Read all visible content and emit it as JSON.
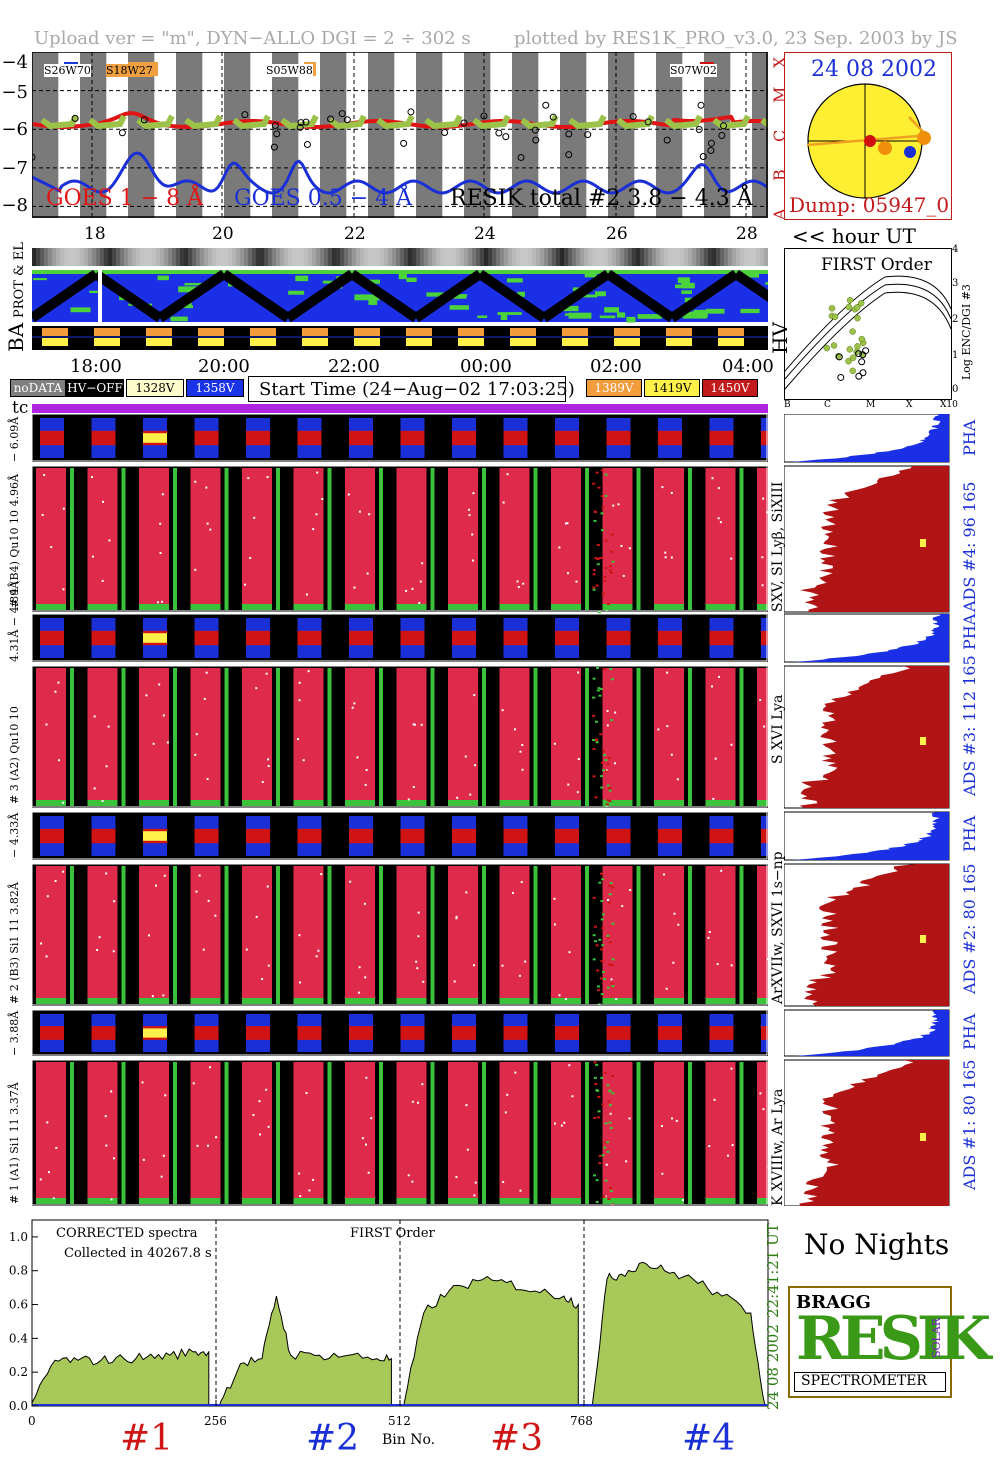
{
  "header": {
    "left": "Upload ver = \"m\", DYN−ALLO DGI =   2 ÷ 302 s",
    "right": "plotted by RES1K_PRO_v3.0, 23 Sep. 2003 by JS"
  },
  "goes": {
    "y_ticks": [
      "−4",
      "−5",
      "−6",
      "−7",
      "−8"
    ],
    "class_letters": [
      "X",
      "M",
      "C",
      "B",
      "A"
    ],
    "legend_goes18": "GOES 1 − 8 Å",
    "legend_goes054": "GOES 0.5 − 4 Å",
    "legend_resik": "RESIK total #2  3.8 − 4.3 Å",
    "flare_tags": [
      {
        "text": "S26W70",
        "color": "#1a3ad6"
      },
      {
        "text": "S18W27",
        "color": "#f0a040"
      },
      {
        "text": "S05W88",
        "color": "#f0a040"
      },
      {
        "text": "S07W02",
        "color": "#d01010"
      }
    ],
    "x_ticks_top": [
      "18",
      "20",
      "22",
      "24",
      "26",
      "28"
    ],
    "hour_label": "<< hour UT"
  },
  "sun": {
    "date": "24 08 2002",
    "dump": "Dump: 05947_0"
  },
  "strips": {
    "prot_label": "PROT & EL",
    "ba_label": "BA",
    "hv_label": "HV"
  },
  "time_axis": {
    "ticks": [
      "18:00",
      "20:00",
      "22:00",
      "00:00",
      "02:00",
      "04:00"
    ]
  },
  "legend_boxes": [
    {
      "text": "noDATA",
      "bg": "#808080",
      "fg": "#ffffff"
    },
    {
      "text": "HV−OFF",
      "bg": "#000000",
      "fg": "#ffffff"
    },
    {
      "text": "1328V",
      "bg": "#fffccc",
      "fg": "#000000"
    },
    {
      "text": "1358V",
      "bg": "#1a33e6",
      "fg": "#ffffff"
    },
    {
      "text": "1389V",
      "bg": "#f39c3c",
      "fg": "#ffffff"
    },
    {
      "text": "1419V",
      "bg": "#fff14a",
      "fg": "#000000"
    },
    {
      "text": "1450V",
      "bg": "#c21a1a",
      "fg": "#ffffff"
    }
  ],
  "start_time": "Start Time (24−Aug−02 17:03:25)",
  "tc_label": "tc",
  "first_order": {
    "title": "FIRST Order",
    "ylabel": "Log ENC/DGI #3",
    "y_ticks": [
      "4",
      "3",
      "2",
      "1",
      "0"
    ],
    "x_ticks": [
      "B",
      "C",
      "M",
      "X",
      "X10"
    ]
  },
  "channels": [
    {
      "pha_label": "− 6.09Å",
      "main_label": "# 4 (B4) Qu10 10 4.96Å",
      "side_label": "SXV, SI Lyβ, SiXIII",
      "ads": "ADS #4:   96 165",
      "pha": "PHA"
    },
    {
      "pha_label": "4.31Å − 4.89Å",
      "main_label": "# 3 (A2) Qu10 10",
      "side_label": "S XVI Lya",
      "ads": "ADS #3:   112 165",
      "pha": "PHA"
    },
    {
      "pha_label": "− 4.33Å",
      "main_label": "# 2 (B3) Si1 11  3.82Å",
      "side_label": "ArXVIIw, SXVI 1s−np",
      "ads": "ADS #2:   80 165",
      "pha": "PHA"
    },
    {
      "pha_label": "− 3.88Å",
      "main_label": "# 1 (A1) Si1 11  3.37Å",
      "side_label": "K XVIIIw, Ar Lya",
      "ads": "ADS #1:   80 165",
      "pha": "PHA"
    }
  ],
  "spectrum": {
    "note1": "CORRECTED spectra",
    "note2": "Collected in 40267.8 s",
    "note3": "FIRST Order",
    "time_side": "22:41:21 UT",
    "date_side": "24 08 2002",
    "y_ticks": [
      "1.0",
      "0.8",
      "0.6",
      "0.4",
      "0.2",
      "0.0"
    ],
    "x_ticks": [
      "0",
      "256",
      "512",
      "768"
    ],
    "xlabel": "Bin No.",
    "bands": [
      {
        "text": "#1",
        "color": "#d01414"
      },
      {
        "text": "#2",
        "color": "#1a2fd6"
      },
      {
        "text": "#3",
        "color": "#d01414"
      },
      {
        "text": "#4",
        "color": "#1a2fd6"
      }
    ]
  },
  "chart_data": {
    "type": "area",
    "title": "",
    "xlabel": "Bin No.",
    "ylabel": "",
    "xlim": [
      0,
      1024
    ],
    "ylim": [
      0,
      1.1
    ],
    "segments": [
      {
        "name": "#1",
        "x": [
          0,
          32,
          64,
          96,
          128,
          160,
          192,
          224,
          246
        ],
        "y": [
          0.02,
          0.27,
          0.27,
          0.27,
          0.28,
          0.29,
          0.3,
          0.32,
          0.32
        ]
      },
      {
        "name": "#2",
        "x": [
          262,
          290,
          320,
          340,
          360,
          400,
          440,
          480,
          500
        ],
        "y": [
          0.02,
          0.25,
          0.28,
          0.65,
          0.3,
          0.3,
          0.3,
          0.28,
          0.28
        ]
      },
      {
        "name": "#3",
        "x": [
          518,
          545,
          580,
          620,
          660,
          700,
          740,
          760
        ],
        "y": [
          0.02,
          0.55,
          0.68,
          0.74,
          0.73,
          0.68,
          0.65,
          0.6
        ]
      },
      {
        "name": "#4",
        "x": [
          780,
          800,
          820,
          850,
          880,
          920,
          960,
          1000,
          1020
        ],
        "y": [
          0.02,
          0.75,
          0.78,
          0.85,
          0.8,
          0.75,
          0.65,
          0.55,
          0.0
        ]
      }
    ]
  },
  "no_nights": "No Nights",
  "logo": {
    "bragg": "BRAGG",
    "resik": "RESIK",
    "solar": "SOLAR",
    "spectrometer": "SPECTROMETER"
  }
}
